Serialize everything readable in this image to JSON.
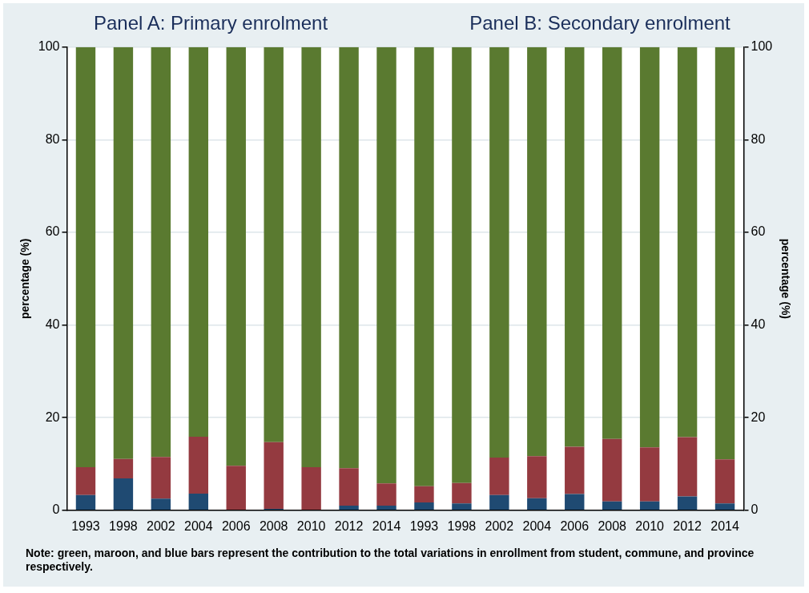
{
  "chart_data": [
    {
      "type": "bar",
      "title": "Panel A: Primary enrolment",
      "ylabel": "percentage (%)",
      "stacked": true,
      "grid": "y",
      "categories": [
        "1993",
        "1998",
        "2002",
        "2004",
        "2006",
        "2008",
        "2010",
        "2012",
        "2014"
      ],
      "ylim": [
        0,
        100
      ],
      "yticks": [
        0,
        20,
        40,
        60,
        80,
        100
      ],
      "series": [
        {
          "color": "#1f4a72",
          "values": [
            3.3,
            6.9,
            2.5,
            3.6,
            0,
            0.3,
            0,
            1.0,
            1.0
          ]
        },
        {
          "color": "#943a40",
          "values": [
            6.0,
            4.2,
            9.0,
            12.3,
            9.6,
            14.4,
            9.3,
            8.1,
            4.8
          ]
        },
        {
          "color": "#5a7a30",
          "values": [
            90.7,
            88.9,
            88.5,
            84.1,
            90.4,
            85.3,
            90.7,
            90.9,
            94.2
          ]
        }
      ],
      "annotations": [
        "Note: green, maroon, and blue bars represent the contribution to the total variations in enrollment from student, commune, and province respectively."
      ]
    },
    {
      "type": "bar",
      "title": "Panel B: Secondary enrolment",
      "y2label": "percentage (%)",
      "stacked": true,
      "grid": "y",
      "categories": [
        "1993",
        "1998",
        "2002",
        "2004",
        "2006",
        "2008",
        "2010",
        "2012",
        "2014"
      ],
      "y2lim": [
        0,
        100
      ],
      "y2ticks": [
        0,
        20,
        40,
        60,
        80,
        100
      ],
      "series": [
        {
          "color": "#1f4a72",
          "axis": "y2",
          "values": [
            1.7,
            1.5,
            3.3,
            2.6,
            3.5,
            1.9,
            1.9,
            3.0,
            1.5
          ]
        },
        {
          "color": "#943a40",
          "axis": "y2",
          "values": [
            3.5,
            4.4,
            8.1,
            9.1,
            10.2,
            13.5,
            11.7,
            12.8,
            9.5
          ]
        },
        {
          "color": "#5a7a30",
          "axis": "y2",
          "values": [
            94.8,
            94.1,
            88.6,
            88.3,
            86.3,
            84.6,
            86.4,
            84.2,
            89.0
          ]
        }
      ]
    }
  ]
}
